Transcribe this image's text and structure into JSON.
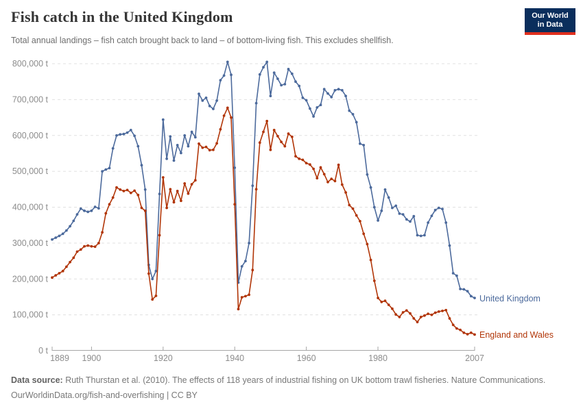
{
  "header": {
    "title": "Fish catch in the United Kingdom",
    "subtitle": "Total annual landings – fish catch brought back to land – of bottom-living fish. This excludes shellfish."
  },
  "logo": {
    "line1": "Our World",
    "line2": "in Data",
    "bg_color": "#0a2e5c",
    "bar_color": "#e0301e",
    "text_color": "#ffffff"
  },
  "footer": {
    "source_label": "Data source:",
    "source_text": " Ruth Thurstan et al. (2010). The effects of 118 years of industrial fishing on UK bottom trawl fisheries. Nature Communications.",
    "line2": "OurWorldinData.org/fish-and-overfishing | CC BY"
  },
  "chart_data": {
    "type": "line",
    "title": "Fish catch in the United Kingdom",
    "xlabel": "",
    "ylabel": "",
    "unit": "t",
    "grid": "dashed horizontal",
    "legend_position": "right-end-of-line",
    "ylim": [
      0,
      800000
    ],
    "yticks": [
      0,
      100000,
      200000,
      300000,
      400000,
      500000,
      600000,
      700000,
      800000
    ],
    "xticks": [
      1889,
      1900,
      1920,
      1940,
      1960,
      1980,
      2007
    ],
    "x_range": [
      1889,
      2007
    ],
    "years": [
      1889,
      1890,
      1891,
      1892,
      1893,
      1894,
      1895,
      1896,
      1897,
      1898,
      1899,
      1900,
      1901,
      1902,
      1903,
      1904,
      1905,
      1906,
      1907,
      1908,
      1909,
      1910,
      1911,
      1912,
      1913,
      1914,
      1915,
      1916,
      1917,
      1918,
      1919,
      1920,
      1921,
      1922,
      1923,
      1924,
      1925,
      1926,
      1927,
      1928,
      1929,
      1930,
      1931,
      1932,
      1933,
      1934,
      1935,
      1936,
      1937,
      1938,
      1939,
      1940,
      1941,
      1942,
      1943,
      1944,
      1945,
      1946,
      1947,
      1948,
      1949,
      1950,
      1951,
      1952,
      1953,
      1954,
      1955,
      1956,
      1957,
      1958,
      1959,
      1960,
      1961,
      1962,
      1963,
      1964,
      1965,
      1966,
      1967,
      1968,
      1969,
      1970,
      1971,
      1972,
      1973,
      1974,
      1975,
      1976,
      1977,
      1978,
      1979,
      1980,
      1981,
      1982,
      1983,
      1984,
      1985,
      1986,
      1987,
      1988,
      1989,
      1990,
      1991,
      1992,
      1993,
      1994,
      1995,
      1996,
      1997,
      1998,
      1999,
      2000,
      2001,
      2002,
      2003,
      2004,
      2005,
      2006,
      2007
    ],
    "series": [
      {
        "name": "United Kingdom",
        "color": "#4C6A9C",
        "values": [
          310000,
          315000,
          320000,
          326000,
          335000,
          347000,
          362000,
          380000,
          396000,
          390000,
          387000,
          390000,
          401000,
          397000,
          500000,
          505000,
          509000,
          564000,
          600000,
          603000,
          604000,
          608000,
          615000,
          599000,
          570000,
          517000,
          449000,
          239000,
          200000,
          222000,
          437000,
          644000,
          535000,
          597000,
          530000,
          573000,
          551000,
          600000,
          570000,
          610000,
          595000,
          716000,
          697000,
          705000,
          682000,
          674000,
          697000,
          754000,
          767000,
          805000,
          769000,
          510000,
          190000,
          235000,
          250000,
          300000,
          460000,
          690000,
          770000,
          790000,
          805000,
          710000,
          775000,
          758000,
          740000,
          743000,
          785000,
          772000,
          750000,
          738000,
          705000,
          698000,
          675000,
          653000,
          678000,
          685000,
          729000,
          717000,
          707000,
          726000,
          729000,
          726000,
          710000,
          669000,
          659000,
          637000,
          577000,
          573000,
          491000,
          455000,
          400000,
          363000,
          390000,
          449000,
          427000,
          398000,
          404000,
          382000,
          380000,
          366000,
          360000,
          375000,
          322000,
          320000,
          322000,
          357000,
          376000,
          392000,
          398000,
          395000,
          357000,
          293000,
          216000,
          209000,
          172000,
          171000,
          166000,
          152000,
          147000
        ]
      },
      {
        "name": "England and Wales",
        "color": "#B13507",
        "values": [
          204000,
          210000,
          216000,
          222000,
          234000,
          247000,
          259000,
          276000,
          282000,
          291000,
          293000,
          291000,
          290000,
          300000,
          330000,
          383000,
          408000,
          427000,
          455000,
          449000,
          445000,
          448000,
          440000,
          446000,
          434000,
          398000,
          390000,
          215000,
          143000,
          153000,
          322000,
          483000,
          398000,
          450000,
          414000,
          445000,
          418000,
          466000,
          438000,
          464000,
          475000,
          577000,
          566000,
          568000,
          559000,
          560000,
          578000,
          617000,
          655000,
          677000,
          650000,
          408000,
          116000,
          149000,
          152000,
          156000,
          225000,
          450000,
          580000,
          610000,
          640000,
          560000,
          615000,
          598000,
          582000,
          570000,
          605000,
          596000,
          542000,
          535000,
          532000,
          523000,
          519000,
          507000,
          481000,
          511000,
          492000,
          470000,
          479000,
          473000,
          518000,
          463000,
          441000,
          406000,
          396000,
          377000,
          361000,
          326000,
          297000,
          253000,
          195000,
          147000,
          136000,
          139000,
          128000,
          117000,
          101000,
          94000,
          107000,
          112000,
          104000,
          90000,
          80000,
          94000,
          98000,
          103000,
          100000,
          106000,
          109000,
          111000,
          113000,
          90000,
          72000,
          62000,
          58000,
          50000,
          46000,
          50000,
          45000
        ]
      }
    ]
  },
  "layout_colors": {
    "gridline": "#e0e0e0",
    "axis_line": "#a5a5a5",
    "axis_text": "#8c8c8c"
  }
}
